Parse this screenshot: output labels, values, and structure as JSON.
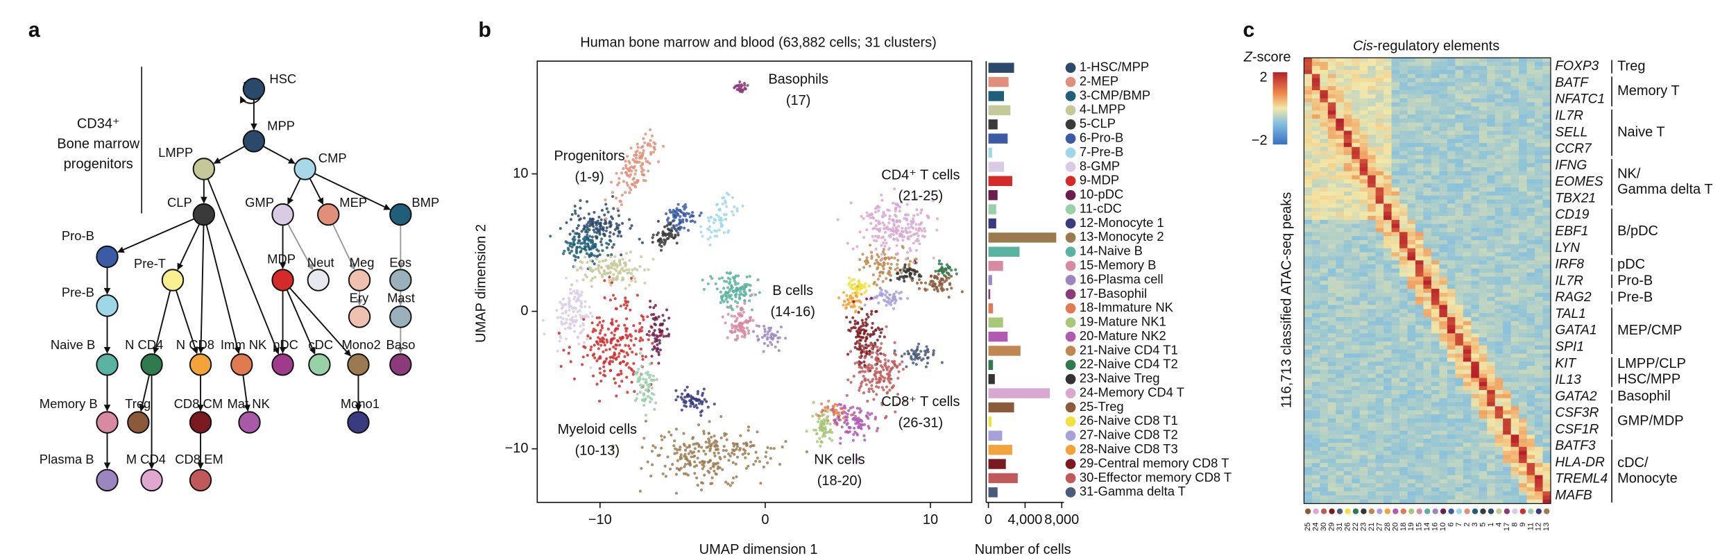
{
  "panel_a": {
    "label": "a",
    "progenitor_label": [
      "CD34⁺",
      "Bone marrow",
      "progenitors"
    ],
    "nodes": [
      {
        "label": "HSC",
        "color": "#2b4a6b"
      },
      {
        "label": "MPP",
        "color": "#2b4a6b"
      },
      {
        "label": "LMPP",
        "color": "#c5c99a"
      },
      {
        "label": "CMP",
        "color": "#a8d8e8"
      },
      {
        "label": "CLP",
        "color": "#3a3a3a"
      },
      {
        "label": "GMP",
        "color": "#d9cbe3"
      },
      {
        "label": "MEP",
        "color": "#e0907a"
      },
      {
        "label": "BMP",
        "color": "#1f5f7a"
      },
      {
        "label": "Pro-B",
        "color": "#3b5ba5"
      },
      {
        "label": "Pre-T",
        "color": "#f8ef90",
        "faded": true
      },
      {
        "label": "MDP",
        "color": "#d42a2a"
      },
      {
        "label": "Neut",
        "color": "#e8e8f0",
        "faded": true
      },
      {
        "label": "Meg",
        "color": "#f0c0b0",
        "faded": true
      },
      {
        "label": "Eos",
        "color": "#9ab0bb",
        "faded": true
      },
      {
        "label": "Pre-B",
        "color": "#9ed8e8"
      },
      {
        "label": "Ery",
        "color": "#f0c0b0",
        "faded": true
      },
      {
        "label": "Mast",
        "color": "#9ab0bb",
        "faded": true
      },
      {
        "label": "Naive B",
        "color": "#5ab3a0"
      },
      {
        "label": "N CD4",
        "color": "#2f7a4e"
      },
      {
        "label": "N CD8",
        "color": "#f2a33a"
      },
      {
        "label": "Imm NK",
        "color": "#e07a50"
      },
      {
        "label": "pDC",
        "color": "#a03a8a"
      },
      {
        "label": "cDC",
        "color": "#98d0a8"
      },
      {
        "label": "Mono2",
        "color": "#9c7a50"
      },
      {
        "label": "Baso",
        "color": "#8b3a7a"
      },
      {
        "label": "Memory B",
        "color": "#d78aa2"
      },
      {
        "label": "Treg",
        "color": "#8b5a3a"
      },
      {
        "label": "CD8 CM",
        "color": "#7a1a20"
      },
      {
        "label": "Mat NK",
        "color": "#a85aa8"
      },
      {
        "label": "Mono1",
        "color": "#3a3a80"
      },
      {
        "label": "Plasma B",
        "color": "#9b86c0"
      },
      {
        "label": "M CD4",
        "color": "#e0a8d0"
      },
      {
        "label": "CD8 EM",
        "color": "#c05a5a"
      }
    ]
  },
  "panel_b": {
    "label": "b",
    "title": "Human bone marrow and blood (63,882 cells; 31 clusters)",
    "umap": {
      "xlabel": "UMAP dimension 1",
      "ylabel": "UMAP dimension 2",
      "xlim": [
        -13.8,
        12.5
      ],
      "ylim": [
        -13.9,
        18.2
      ],
      "xticks": [
        {
          "value": -10,
          "label": "−10"
        },
        0,
        10
      ],
      "yticks": [
        {
          "value": -10,
          "label": "−10"
        },
        0,
        10
      ],
      "annotations": [
        [
          "Basophils",
          "(17)"
        ],
        [
          "Progenitors",
          "(1-9)"
        ],
        [
          "CD4⁺ T cells",
          "(21-25)"
        ],
        [
          "B cells",
          "(14-16)"
        ],
        [
          "CD8⁺ T cells",
          "(26-31)"
        ],
        [
          "Myeloid cells",
          "(10-13)"
        ],
        [
          "NK cells",
          "(18-20)"
        ]
      ]
    },
    "bar_chart": {
      "xlabel": "Number of cells",
      "xlim": [
        0,
        8000
      ],
      "xticks": [
        0,
        {
          "value": 4000,
          "label": "4,000"
        },
        {
          "value": 8000,
          "label": "8,000"
        }
      ],
      "categories": [
        "1-HSC/MPP",
        "2-MEP",
        "3-CMP/BMP",
        "4-LMPP",
        "5-CLP",
        "6-Pro-B",
        "7-Pre-B",
        "8-GMP",
        "9-MDP",
        "10-pDC",
        "11-cDC",
        "12-Monocyte 1",
        "13-Monocyte 2",
        "14-Naive B",
        "15-Memory B",
        "16-Plasma cell",
        "17-Basophil",
        "18-Immature NK",
        "19-Mature NK1",
        "20-Mature NK2",
        "21-Naive CD4 T1",
        "22-Naive CD4 T2",
        "23-Naive Treg",
        "24-Memory CD4 T",
        "25-Treg",
        "26-Naive CD8 T1",
        "27-Naive CD8 T2",
        "28-Naive CD8 T3",
        "29-Central memory CD8 T",
        "30-Effector memory CD8 T",
        "31-Gamma delta T"
      ],
      "values": [
        2800,
        2200,
        1700,
        2400,
        1000,
        2100,
        400,
        1700,
        2600,
        1000,
        850,
        850,
        7400,
        3400,
        1600,
        400,
        200,
        500,
        1600,
        2100,
        3500,
        500,
        700,
        6700,
        2800,
        350,
        1500,
        2600,
        1900,
        3200,
        1000
      ],
      "colors": [
        "#2b4a6b",
        "#e0907a",
        "#1f5f7a",
        "#c5c99a",
        "#3a3a3a",
        "#3b5ba5",
        "#9ed8e8",
        "#d9cbe3",
        "#d42a2a",
        "#6b1f4a",
        "#98d0a8",
        "#3a3a80",
        "#9c7a50",
        "#5ab3a0",
        "#d78aa2",
        "#9b86c0",
        "#8b3a7a",
        "#e07a50",
        "#a8c878",
        "#b05ab0",
        "#c08850",
        "#2f7a4e",
        "#333333",
        "#d8a8d0",
        "#8b5a3a",
        "#f0e040",
        "#a8a0d8",
        "#f2a33a",
        "#7a1a20",
        "#c05a5a",
        "#4a5a7a"
      ]
    }
  },
  "panel_c": {
    "label": "c",
    "title_italic": "Cis",
    "title_rest": "-regulatory elements",
    "zscore_italic": "Z",
    "zscore_rest": "-score",
    "colorbar_max": "2",
    "colorbar_min": "−2",
    "ylabel": "116,713 classified ATAC-seq peaks",
    "genes": [
      "FOXP3",
      "BATF",
      "NFATC1",
      "IL7R",
      "SELL",
      "CCR7",
      "IFNG",
      "EOMES",
      "TBX21",
      "CD19",
      "EBF1",
      "LYN",
      "IRF8",
      "IL7R",
      "RAG2",
      "TAL1",
      "GATA1",
      "SPI1",
      "KIT",
      "IL13",
      "GATA2",
      "CSF3R",
      "CSF1R",
      "BATF3",
      "HLA-DR",
      "TREML4",
      "MAFB"
    ],
    "groups": [
      [
        "Treg"
      ],
      [
        "Memory T"
      ],
      [
        "Naive T"
      ],
      [
        "NK/",
        "Gamma delta T"
      ],
      [
        "B/pDC"
      ],
      [
        "pDC"
      ],
      [
        "Pro-B"
      ],
      [
        "Pre-B"
      ],
      [
        "MEP/CMP"
      ],
      [
        "LMPP/CLP",
        "HSC/MPP"
      ],
      [
        "Basophil"
      ],
      [
        "GMP/MDP"
      ],
      [
        "cDC/",
        "Monocyte"
      ]
    ],
    "column_labels": [
      "25",
      "24",
      "30",
      "29",
      "31",
      "26",
      "22",
      "23",
      "21",
      "27",
      "28",
      "20",
      "18",
      "19",
      "15",
      "14",
      "16",
      "10",
      "6",
      "7",
      "2",
      "3",
      "5",
      "1",
      "4",
      "17",
      "8",
      "9",
      "11",
      "12",
      "13"
    ]
  }
}
